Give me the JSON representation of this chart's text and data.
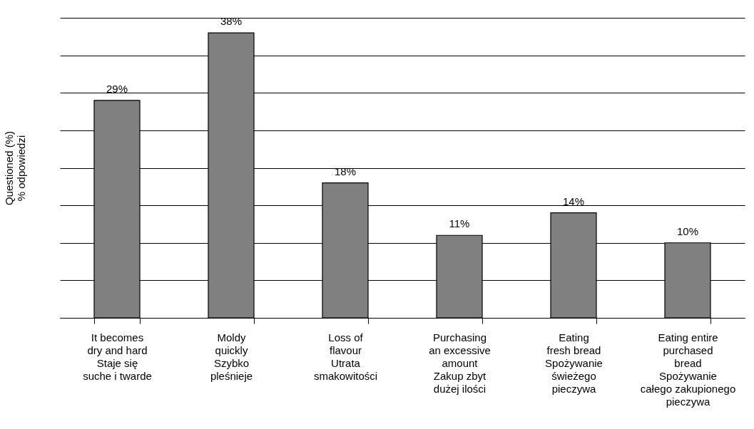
{
  "chart_data": {
    "type": "bar",
    "ylabel": "Questioned (%)\n% odpowiedzi",
    "categories": [
      "It becomes\ndry and hard\nStaje się\nsuche i twarde",
      "Moldy\nquickly\nSzybko\npleśnieje",
      "Loss of\nflavour\nUtrata\nsmakowitości",
      "Purchasing\nan excessive\namount\nZakup zbyt\ndużej ilości",
      "Eating\nfresh bread\nSpożywanie\nświeżego\npieczywa",
      "Eating entire\npurchased\nbread\nSpożywanie\ncałego zakupionego\npieczywa"
    ],
    "values": [
      29,
      38,
      18,
      11,
      14,
      10
    ],
    "value_labels": [
      "29%",
      "38%",
      "18%",
      "11%",
      "14%",
      "10%"
    ],
    "color": "#808080",
    "ylim": [
      0,
      40
    ],
    "yticks": [
      {
        "value": 0,
        "label": null
      },
      {
        "value": 5,
        "label": null
      },
      {
        "value": 10,
        "label": null
      },
      {
        "value": 15,
        "label": null
      },
      {
        "value": 20,
        "label": null
      },
      {
        "value": 25,
        "label": null
      },
      {
        "value": 30,
        "label": null
      },
      {
        "value": 35,
        "label": null
      },
      {
        "value": 40,
        "label": null
      }
    ],
    "grid": "y"
  }
}
